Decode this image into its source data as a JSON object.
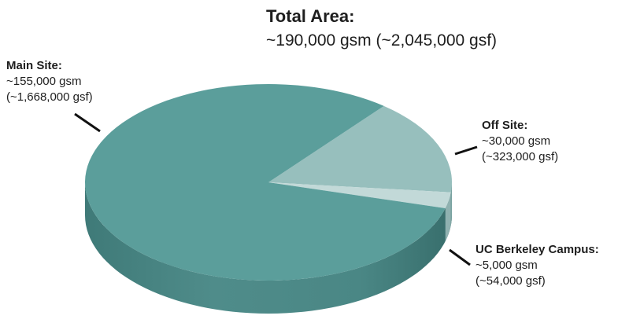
{
  "chart_data": {
    "type": "pie",
    "title": "Total Area:",
    "subtitle": "~190,000 gsm (~2,045,000 gsf)",
    "slices": [
      {
        "label": "Main Site:",
        "value": 155000,
        "gsm_text": "~155,000 gsm",
        "gsf_text": "(~1,668,000 gsf)",
        "color": "#5b9e9b"
      },
      {
        "label": "Off Site:",
        "value": 30000,
        "gsm_text": "~30,000 gsm",
        "gsf_text": "(~323,000 gsf)",
        "color": "#97bfbd"
      },
      {
        "label": "UC Berkeley Campus:",
        "value": 5000,
        "gsm_text": "~5,000 gsm",
        "gsf_text": "(~54,000 gsf)",
        "color": "#c2d9d8"
      }
    ],
    "style": "3d-pie",
    "legend": "none"
  }
}
